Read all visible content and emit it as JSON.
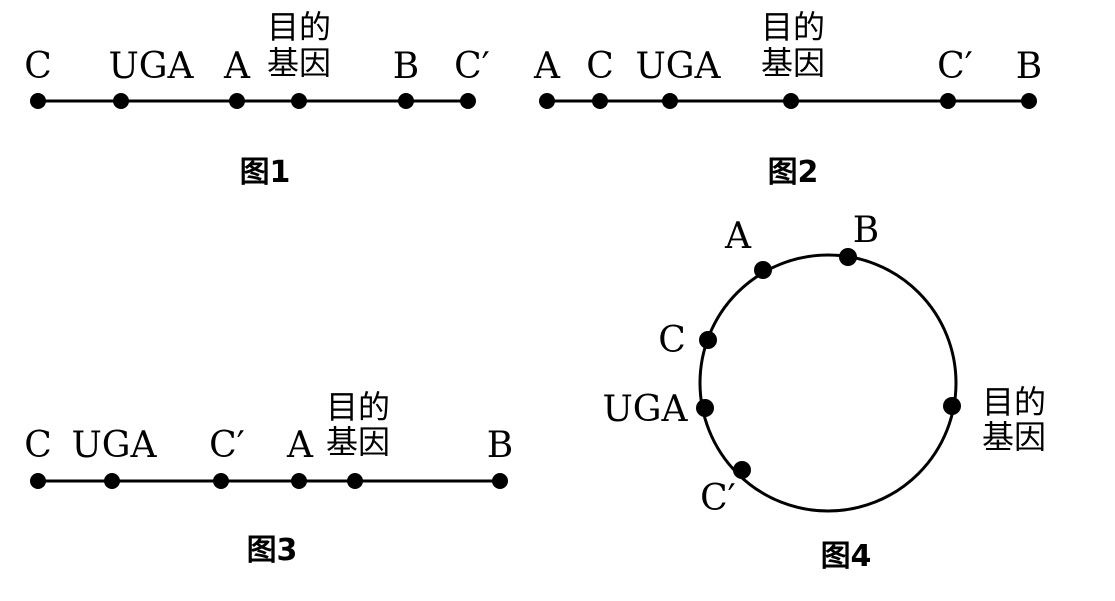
{
  "figures": [
    {
      "caption": "图1",
      "sites": [
        {
          "label": "C"
        },
        {
          "label": "UGA"
        },
        {
          "label": "A"
        },
        {
          "label": "目的",
          "label2": "基因"
        },
        {
          "label": "B"
        },
        {
          "label": "C′"
        }
      ]
    },
    {
      "caption": "图2",
      "sites": [
        {
          "label": "A"
        },
        {
          "label": "C"
        },
        {
          "label": "UGA"
        },
        {
          "label": "目的",
          "label2": "基因"
        },
        {
          "label": "C′"
        },
        {
          "label": "B"
        }
      ]
    },
    {
      "caption": "图3",
      "sites": [
        {
          "label": "C"
        },
        {
          "label": "UGA"
        },
        {
          "label": "C′"
        },
        {
          "label": "A"
        },
        {
          "label": "目的",
          "label2": "基因"
        },
        {
          "label": "B"
        }
      ]
    },
    {
      "caption": "图4",
      "circular": true,
      "sites": [
        {
          "label": "A"
        },
        {
          "label": "B"
        },
        {
          "label": "C"
        },
        {
          "label": "UGA"
        },
        {
          "label": "目的",
          "label2": "基因"
        },
        {
          "label": "C′"
        }
      ]
    }
  ]
}
